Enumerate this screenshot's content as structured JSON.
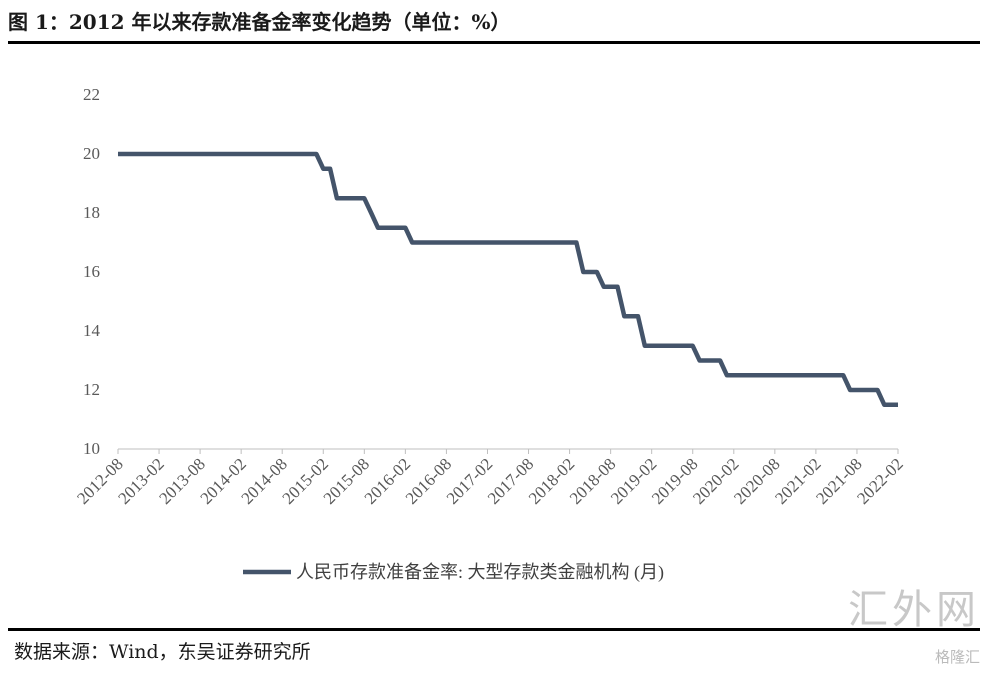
{
  "title": "图 1：2012 年以来存款准备金率变化趋势（单位：%）",
  "source": "数据来源：Wind，东吴证券研究所",
  "watermark": "汇外网",
  "watermark_sub": "格隆汇",
  "chart_data": {
    "type": "line",
    "title": "图 1：2012 年以来存款准备金率变化趋势（单位：%）",
    "xlabel": "",
    "ylabel": "",
    "ylim": [
      10,
      22
    ],
    "yticks": [
      10,
      12,
      14,
      16,
      18,
      20,
      22
    ],
    "xstart": "2012-08",
    "xend": "2022-02",
    "xticks": [
      "2012-08",
      "2013-02",
      "2013-08",
      "2014-02",
      "2014-08",
      "2015-02",
      "2015-08",
      "2016-02",
      "2016-08",
      "2017-02",
      "2017-08",
      "2018-02",
      "2018-08",
      "2019-02",
      "2019-08",
      "2020-02",
      "2020-08",
      "2021-02",
      "2021-08",
      "2022-02"
    ],
    "grid": false,
    "legend_position": "bottom",
    "color": "#44546a",
    "series": [
      {
        "name": "人民币存款准备金率: 大型存款类金融机构 (月)",
        "frequency": "monthly",
        "values": [
          20,
          20,
          20,
          20,
          20,
          20,
          20,
          20,
          20,
          20,
          20,
          20,
          20,
          20,
          20,
          20,
          20,
          20,
          20,
          20,
          20,
          20,
          20,
          20,
          20,
          20,
          20,
          20,
          20,
          20,
          19.5,
          19.5,
          18.5,
          18.5,
          18.5,
          18.5,
          18.5,
          18,
          17.5,
          17.5,
          17.5,
          17.5,
          17.5,
          17,
          17,
          17,
          17,
          17,
          17,
          17,
          17,
          17,
          17,
          17,
          17,
          17,
          17,
          17,
          17,
          17,
          17,
          17,
          17,
          17,
          17,
          17,
          17,
          17,
          16,
          16,
          16,
          15.5,
          15.5,
          15.5,
          14.5,
          14.5,
          14.5,
          13.5,
          13.5,
          13.5,
          13.5,
          13.5,
          13.5,
          13.5,
          13.5,
          13,
          13,
          13,
          13,
          12.5,
          12.5,
          12.5,
          12.5,
          12.5,
          12.5,
          12.5,
          12.5,
          12.5,
          12.5,
          12.5,
          12.5,
          12.5,
          12.5,
          12.5,
          12.5,
          12.5,
          12.5,
          12,
          12,
          12,
          12,
          12,
          11.5,
          11.5,
          11.5
        ]
      }
    ]
  }
}
